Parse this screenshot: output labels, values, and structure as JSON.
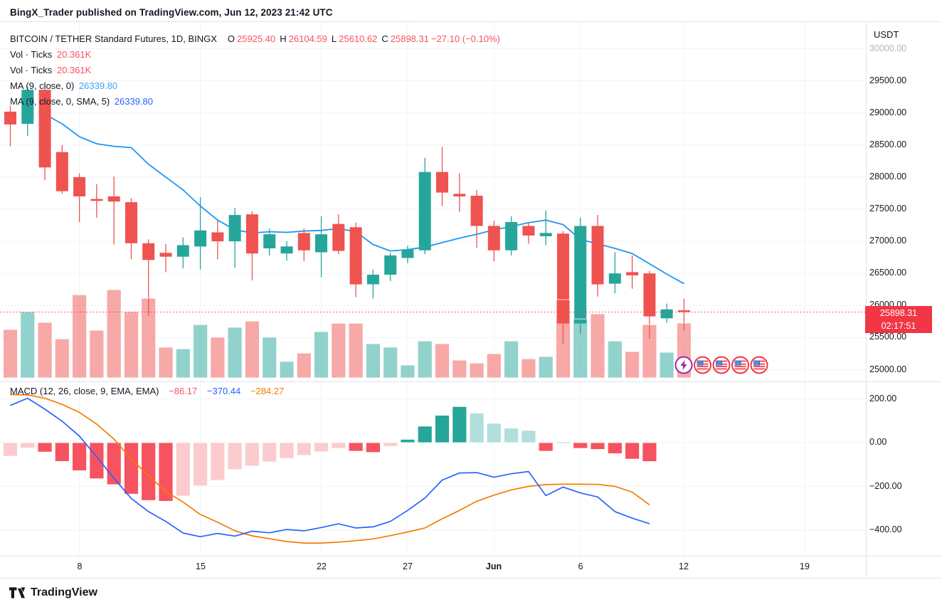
{
  "header": {
    "text": "BingX_Trader published on TradingView.com, Jun 12, 2023 21:42 UTC"
  },
  "legend": {
    "title": "BITCOIN / TETHER Standard Futures, 1D, BINGX",
    "ohlc": [
      {
        "k": "O",
        "v": "25925.40"
      },
      {
        "k": "H",
        "v": "26104.59"
      },
      {
        "k": "L",
        "v": "25610.62"
      },
      {
        "k": "C",
        "v": "25898.31"
      }
    ],
    "change": "−27.10 (−0.10%)",
    "vol_rows": [
      {
        "label": "Vol · Ticks",
        "value": "20.361K"
      },
      {
        "label": "Vol · Ticks",
        "value": "20.361K"
      }
    ],
    "ma_rows": [
      {
        "label": "MA (9, close, 0)",
        "value": "26339.80"
      },
      {
        "label": "MA (9, close, 0, SMA, 5)",
        "value": "26339.80"
      }
    ]
  },
  "macd_legend": {
    "label": "MACD (12, 26, close, 9, EMA, EMA)",
    "hist_value": "−86.17",
    "macd_value": "−370.44",
    "signal_value": "−284.27"
  },
  "axis": {
    "currency": "USDT",
    "price_ticks": [
      {
        "value": 30000,
        "label": "30000.00",
        "faded": true
      },
      {
        "value": 29500,
        "label": "29500.00"
      },
      {
        "value": 29000,
        "label": "29000.00"
      },
      {
        "value": 28500,
        "label": "28500.00"
      },
      {
        "value": 28000,
        "label": "28000.00"
      },
      {
        "value": 27500,
        "label": "27500.00"
      },
      {
        "value": 27000,
        "label": "27000.00"
      },
      {
        "value": 26500,
        "label": "26500.00"
      },
      {
        "value": 26000,
        "label": "26000.00"
      },
      {
        "value": 25500,
        "label": "25500.00"
      },
      {
        "value": 25000,
        "label": "25000.00"
      }
    ],
    "macd_ticks": [
      {
        "value": 200,
        "label": "200.00"
      },
      {
        "value": 0,
        "label": "0.00"
      },
      {
        "value": -200,
        "label": "−200.00"
      },
      {
        "value": -400,
        "label": "−400.00"
      }
    ],
    "time_ticks": [
      {
        "label": "8",
        "i": 4
      },
      {
        "label": "15",
        "i": 11
      },
      {
        "label": "22",
        "i": 18
      },
      {
        "label": "27",
        "i": 23
      },
      {
        "label": "Jun",
        "i": 28,
        "bold": true
      },
      {
        "label": "6",
        "i": 33
      },
      {
        "label": "12",
        "i": 39
      },
      {
        "label": "19",
        "i": 46
      }
    ],
    "price_badge": {
      "price": "25898.31",
      "countdown": "02:17:51"
    }
  },
  "icons": {
    "event_markers": [
      {
        "type": "lightning"
      },
      {
        "type": "us-flag"
      },
      {
        "type": "us-flag"
      },
      {
        "type": "us-flag"
      },
      {
        "type": "us-flag"
      }
    ]
  },
  "footer": {
    "brand": "TradingView"
  },
  "colors": {
    "candle_up": "#26a69a",
    "candle_down": "#ef5350",
    "vol_up": "rgba(38,166,154,0.5)",
    "vol_down": "rgba(239,83,80,0.5)",
    "ma_line": "#2196f3",
    "macd_line": "#2962ff",
    "signal_line": "#f57c00",
    "hist_pos": "#26a69a",
    "hist_pos_light": "#b2dfdb",
    "hist_neg": "#f7525f",
    "hist_neg_light": "#fccbcd",
    "last_price": "#f23645",
    "grid": "#f0f3fa",
    "frame": "#e0e3eb",
    "event_purple": "#9c27b0",
    "flag_blue": "#3568c9"
  },
  "chart_data": {
    "type": "candlestick",
    "title": "BITCOIN / TETHER Standard Futures, 1D, BINGX",
    "start_date": "May 4",
    "end_date": "Jun 12",
    "price_axis": {
      "min": 25000,
      "max": 30000,
      "tick_step": 500,
      "unit": "USDT"
    },
    "last_price": 25898.31,
    "countdown": "02:17:51",
    "candles": [
      [
        29020,
        29110,
        28480,
        28820
      ],
      [
        28830,
        29410,
        28640,
        29360
      ],
      [
        29360,
        29440,
        27950,
        28150
      ],
      [
        28390,
        28500,
        27740,
        27780
      ],
      [
        28000,
        28060,
        27300,
        27700
      ],
      [
        27660,
        27890,
        27370,
        27630
      ],
      [
        27700,
        28010,
        26950,
        27620
      ],
      [
        27610,
        27670,
        26720,
        26970
      ],
      [
        26970,
        27030,
        25840,
        26710
      ],
      [
        26820,
        26960,
        26520,
        26760
      ],
      [
        26760,
        27060,
        26580,
        26940
      ],
      [
        26920,
        27690,
        26560,
        27170
      ],
      [
        27140,
        27330,
        26720,
        27000
      ],
      [
        27000,
        27520,
        26590,
        27410
      ],
      [
        27420,
        27470,
        26390,
        26810
      ],
      [
        26890,
        27200,
        26780,
        27110
      ],
      [
        26810,
        27000,
        26700,
        26920
      ],
      [
        27130,
        27200,
        26690,
        26860
      ],
      [
        26830,
        27390,
        26440,
        27110
      ],
      [
        27270,
        27420,
        26800,
        26850
      ],
      [
        27220,
        27290,
        26130,
        26330
      ],
      [
        26330,
        26560,
        26110,
        26480
      ],
      [
        26480,
        26820,
        26380,
        26780
      ],
      [
        26740,
        26930,
        26660,
        26870
      ],
      [
        26860,
        28300,
        26800,
        28080
      ],
      [
        28080,
        28470,
        27550,
        27760
      ],
      [
        27740,
        28060,
        27460,
        27700
      ],
      [
        27710,
        27800,
        26900,
        27240
      ],
      [
        27240,
        27320,
        26690,
        26860
      ],
      [
        26860,
        27390,
        26780,
        27300
      ],
      [
        27240,
        27290,
        26960,
        27090
      ],
      [
        27080,
        27480,
        26940,
        27130
      ],
      [
        27120,
        27160,
        25390,
        25720
      ],
      [
        25720,
        27370,
        25560,
        27240
      ],
      [
        27240,
        27410,
        26140,
        26330
      ],
      [
        26340,
        26830,
        26190,
        26500
      ],
      [
        26520,
        26780,
        26260,
        26470
      ],
      [
        26500,
        26540,
        25480,
        25830
      ],
      [
        25800,
        26030,
        25730,
        25940
      ],
      [
        25925.4,
        26104.59,
        25610.62,
        25898.31
      ]
    ],
    "volume_k": [
      18,
      24.6,
      20.6,
      14.5,
      30.9,
      17.7,
      32.8,
      24.6,
      29.6,
      11.4,
      10.8,
      19.8,
      15.1,
      18.8,
      21.1,
      15.1,
      6.1,
      9.2,
      17.2,
      20.3,
      20.3,
      12.7,
      11.4,
      4.8,
      13.7,
      12.7,
      6.6,
      5.5,
      9,
      13.7,
      7.1,
      7.9,
      29.1,
      21.9,
      23.8,
      13.7,
      9.8,
      19.8,
      9.5,
      20.361
    ],
    "ma9": [
      null,
      null,
      28980,
      28830,
      28630,
      28520,
      28480,
      28460,
      28200,
      28000,
      27800,
      27550,
      27330,
      27180,
      27130,
      27150,
      27140,
      27160,
      27170,
      27200,
      27150,
      26950,
      26850,
      26870,
      26910,
      26980,
      27050,
      27110,
      27180,
      27230,
      27290,
      27330,
      27260,
      27030,
      26960,
      26890,
      26810,
      26650,
      26490,
      26339.8
    ],
    "macd": {
      "params": "12, 26, close, 9, EMA, EMA",
      "y_axis": {
        "min": -400,
        "max": 200,
        "tick_step": 200
      },
      "histogram": [
        -62,
        -25,
        -43,
        -86,
        -128,
        -165,
        -192,
        -235,
        -264,
        -268,
        -244,
        -197,
        -172,
        -123,
        -107,
        -88,
        -72,
        -58,
        -42,
        -26,
        -39,
        -45,
        -17,
        15,
        75,
        125,
        165,
        135,
        88,
        66,
        56,
        -39,
        2,
        -26,
        -31,
        -50,
        -75,
        -86.17
      ],
      "macd_line": [
        170,
        203,
        153,
        98,
        30,
        -65,
        -163,
        -255,
        -315,
        -360,
        -413,
        -430,
        -415,
        -427,
        -405,
        -412,
        -397,
        -403,
        -388,
        -371,
        -390,
        -385,
        -360,
        -310,
        -253,
        -171,
        -139,
        -137,
        -158,
        -142,
        -132,
        -242,
        -203,
        -230,
        -248,
        -315,
        -345,
        -370.44
      ],
      "signal_line": [
        220,
        218,
        203,
        175,
        138,
        85,
        16,
        -75,
        -151,
        -223,
        -272,
        -328,
        -364,
        -403,
        -426,
        -439,
        -452,
        -459,
        -459,
        -455,
        -448,
        -440,
        -425,
        -408,
        -390,
        -348,
        -310,
        -268,
        -240,
        -216,
        -200,
        -192,
        -190,
        -190,
        -191,
        -200,
        -226,
        -284.27
      ]
    }
  }
}
